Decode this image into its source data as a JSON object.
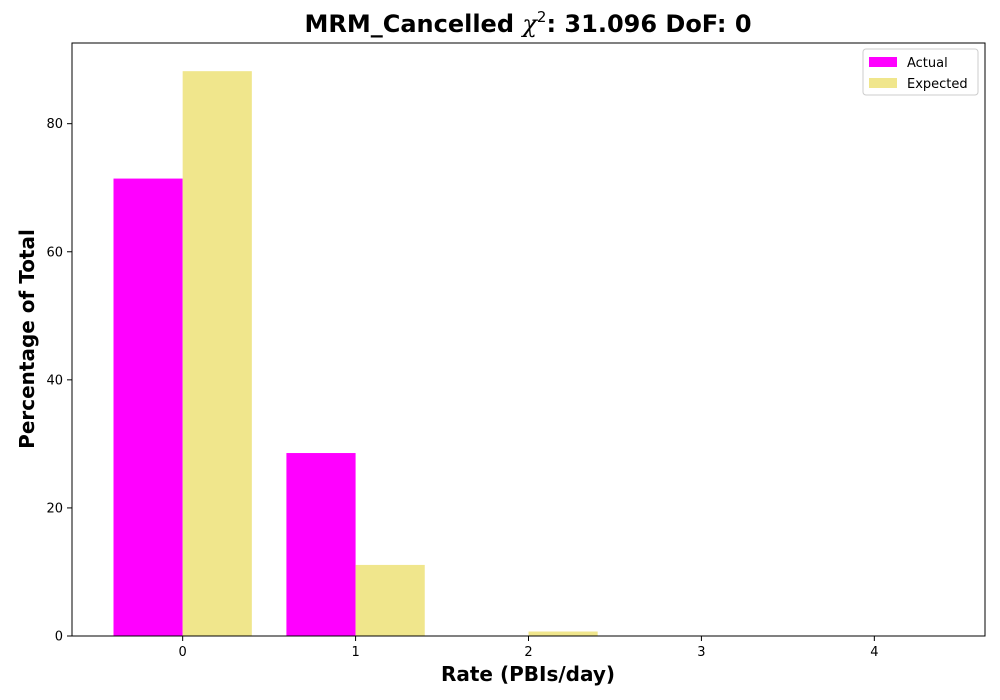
{
  "chart_data": {
    "type": "bar",
    "title": "MRM_Cancelled",
    "title_chi_symbol": "χ",
    "title_chi_exponent": "2",
    "title_rest": ": 31.096 DoF: 0",
    "xlabel": "Rate (PBIs/day)",
    "ylabel": "Percentage of Total",
    "categories": [
      "0",
      "1",
      "2",
      "3",
      "4"
    ],
    "x": [
      0,
      1,
      2,
      3,
      4
    ],
    "series": [
      {
        "name": "Actual",
        "color": "#ff00ff",
        "values": [
          71.43,
          28.57,
          0,
          0,
          0
        ]
      },
      {
        "name": "Expected",
        "color": "#f0e68c",
        "values": [
          88.2,
          11.1,
          0.7,
          0,
          0
        ]
      }
    ],
    "xlim": [
      -0.64,
      4.64
    ],
    "ylim": [
      0,
      92.6
    ],
    "yticks": [
      0,
      20,
      40,
      60,
      80
    ],
    "grid": false,
    "legend_position": "top-right"
  }
}
